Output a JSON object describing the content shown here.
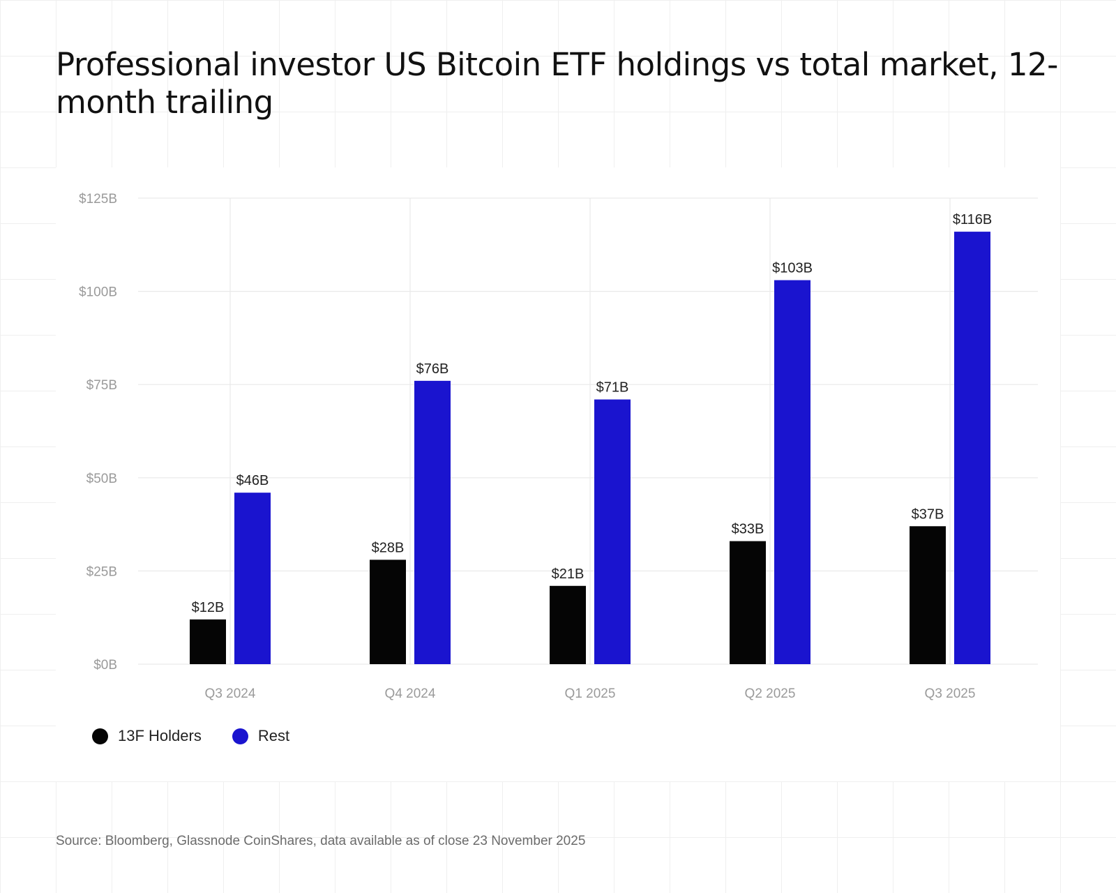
{
  "title": "Professional investor US Bitcoin ETF holdings vs total market, 12-month trailing",
  "source": "Source: Bloomberg, Glassnode CoinShares, data available as of close 23 November 2025",
  "colors": {
    "holders": "#050505",
    "rest": "#1a14cf",
    "grid": "#e9e9e9",
    "tick_text": "#9a9a9a",
    "label_text": "#222222"
  },
  "chart_data": {
    "type": "bar",
    "categories": [
      "Q3 2024",
      "Q4 2024",
      "Q1 2025",
      "Q2 2025",
      "Q3 2025"
    ],
    "series": [
      {
        "name": "13F Holders",
        "values": [
          12,
          28,
          21,
          33,
          37
        ],
        "labels": [
          "$12B",
          "$28B",
          "$21B",
          "$33B",
          "$37B"
        ]
      },
      {
        "name": "Rest",
        "values": [
          46,
          76,
          71,
          103,
          116
        ],
        "labels": [
          "$46B",
          "$76B",
          "$71B",
          "$103B",
          "$116B"
        ]
      }
    ],
    "ylim": [
      0,
      125
    ],
    "yticks": [
      0,
      25,
      50,
      75,
      100,
      125
    ],
    "ytick_labels": [
      "$0B",
      "$25B",
      "$50B",
      "$75B",
      "$100B",
      "$125B"
    ],
    "grid": true,
    "legend_position": "bottom-left"
  }
}
